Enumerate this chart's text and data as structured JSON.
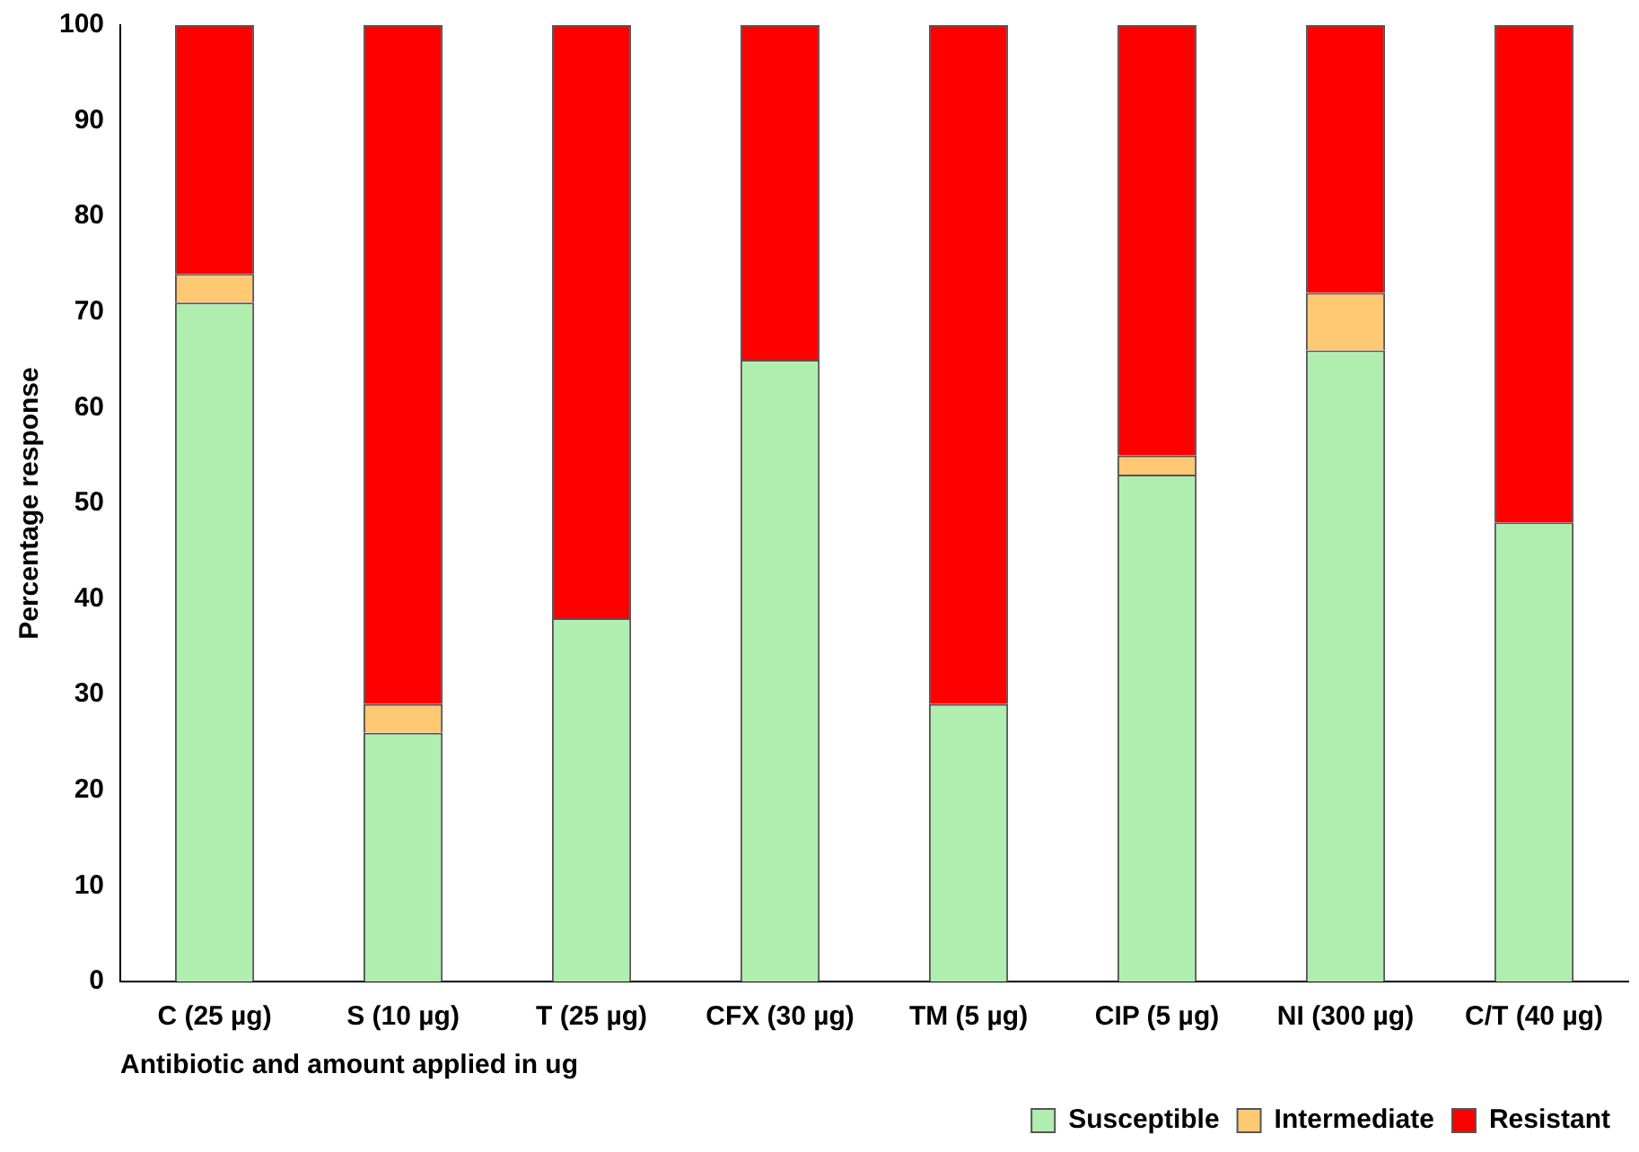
{
  "chart_data": {
    "type": "bar",
    "stacked": true,
    "xlabel": "Antibiotic and amount applied in ug",
    "ylabel": "Percentage response",
    "categories": [
      "C (25 µg)",
      "S (10 µg)",
      "T (25 µg)",
      "CFX (30 µg)",
      "TM (5 µg)",
      "CIP (5 µg)",
      "NI (300 µg)",
      "C/T (40 µg)"
    ],
    "series": [
      {
        "name": "Susceptible",
        "color": "#b0eeb0",
        "values": [
          71,
          26,
          38,
          65,
          29,
          53,
          66,
          48
        ]
      },
      {
        "name": "Intermediate",
        "color": "#ffc873",
        "values": [
          3,
          3,
          0,
          0,
          0,
          2,
          6,
          0
        ]
      },
      {
        "name": "Resistant",
        "color": "#ff0000",
        "values": [
          26,
          71,
          62,
          35,
          71,
          45,
          28,
          52
        ]
      }
    ],
    "ylim": [
      0,
      100
    ],
    "yticks": [
      0,
      10,
      20,
      30,
      40,
      50,
      60,
      70,
      80,
      90,
      100
    ],
    "grid": false,
    "legend": "bottom right"
  }
}
